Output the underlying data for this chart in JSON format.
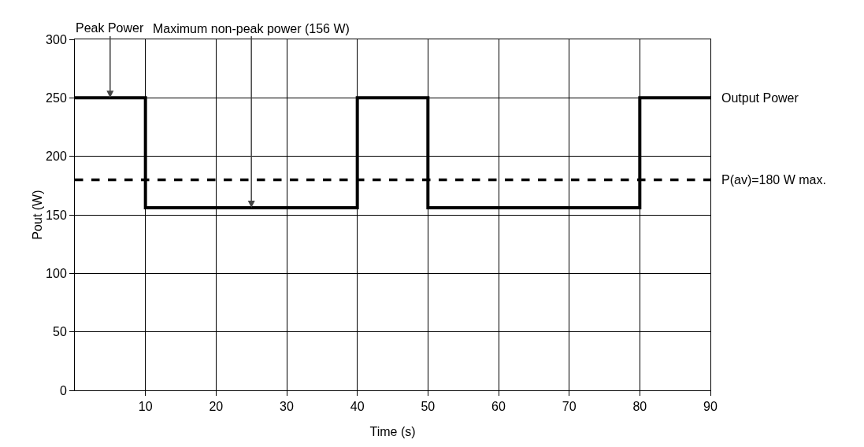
{
  "chart_data": {
    "type": "step",
    "xlabel": "Time (s)",
    "ylabel": "Pout (W)",
    "x": [
      0,
      10,
      40,
      50,
      80,
      90
    ],
    "series": [
      {
        "name": "Output Power",
        "color": "#000000",
        "values": [
          250,
          156,
          250,
          156,
          250,
          250
        ]
      }
    ],
    "xlim": [
      0,
      90
    ],
    "xticks": [
      10,
      20,
      30,
      40,
      50,
      60,
      70,
      80,
      90
    ],
    "ylim": [
      0,
      300
    ],
    "yticks": [
      0,
      50,
      100,
      150,
      200,
      250,
      300
    ],
    "grid": true,
    "legend": false,
    "marker": "none",
    "line_style": "solid",
    "ref_lines": [
      {
        "axis": "y",
        "value": 180,
        "label": "P(av)=180 W max.",
        "color": "#000000",
        "line_style": "dashed"
      }
    ],
    "annotations": [
      {
        "text": "Peak Power",
        "x": 5,
        "y": 250
      },
      {
        "text": "Maximum non-peak power (156 W)",
        "x": 25,
        "y": 156
      }
    ]
  }
}
